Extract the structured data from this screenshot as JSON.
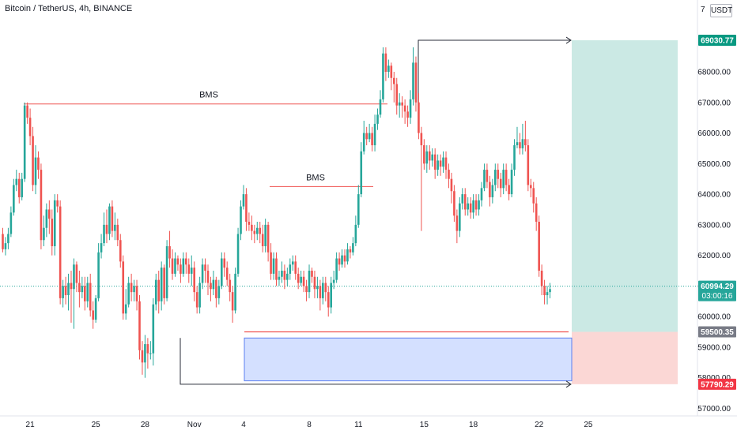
{
  "header": {
    "title": "Bitcoin / TetherUS, 4h, BINANCE",
    "corner_value": "7",
    "currency": "USDT"
  },
  "chart_data": {
    "type": "candlestick",
    "title": "Bitcoin / TetherUS, 4h, BINANCE",
    "ylabel": "",
    "ylim": [
      56700,
      70000
    ],
    "y_ticks": [
      "57000.00",
      "58000.00",
      "59000.00",
      "60000.00",
      "61000.00",
      "62000.00",
      "63000.00",
      "64000.00",
      "65000.00",
      "66000.00",
      "67000.00",
      "68000.00"
    ],
    "x_ticks": [
      "21",
      "25",
      "28",
      "Nov",
      "4",
      "8",
      "11",
      "15",
      "18",
      "22",
      "25"
    ],
    "x_tick_bars": [
      10,
      34,
      52,
      70,
      88,
      112,
      130,
      154,
      172,
      196,
      214
    ],
    "candles": [
      [
        62700,
        62200,
        62900,
        62100
      ],
      [
        62200,
        62400,
        62600,
        62000
      ],
      [
        62400,
        62700,
        62900,
        62200
      ],
      [
        62700,
        63400,
        63600,
        62600
      ],
      [
        63400,
        64300,
        64500,
        63300
      ],
      [
        64300,
        64500,
        64800,
        64100
      ],
      [
        64500,
        63900,
        64700,
        63700
      ],
      [
        63900,
        64500,
        64700,
        63800
      ],
      [
        64500,
        66900,
        67000,
        64400
      ],
      [
        66900,
        66500,
        67000,
        66300
      ],
      [
        66500,
        65900,
        66800,
        65600
      ],
      [
        65900,
        64300,
        66200,
        64100
      ],
      [
        64300,
        65200,
        65600,
        64000
      ],
      [
        65200,
        64800,
        65400,
        64500
      ],
      [
        64800,
        62500,
        65000,
        62200
      ],
      [
        62500,
        62900,
        63300,
        62300
      ],
      [
        62900,
        63500,
        63700,
        62600
      ],
      [
        63500,
        63200,
        63800,
        62700
      ],
      [
        63200,
        62300,
        63500,
        62000
      ],
      [
        62300,
        63800,
        64000,
        62000
      ],
      [
        63800,
        63600,
        64000,
        63400
      ],
      [
        63600,
        60600,
        63800,
        60400
      ],
      [
        60600,
        61000,
        61200,
        60300
      ],
      [
        61000,
        60700,
        61300,
        60400
      ],
      [
        60700,
        61100,
        61400,
        60200
      ],
      [
        61100,
        60900,
        61500,
        59800
      ],
      [
        60900,
        61700,
        61900,
        59600
      ],
      [
        61700,
        61100,
        61800,
        60800
      ],
      [
        61100,
        60800,
        61500,
        60300
      ],
      [
        60800,
        61000,
        61300,
        60600
      ],
      [
        61000,
        60500,
        61300,
        60200
      ],
      [
        60500,
        61100,
        61300,
        60300
      ],
      [
        61100,
        60200,
        61400,
        60000
      ],
      [
        60200,
        59900,
        60500,
        59600
      ],
      [
        59900,
        60600,
        60700,
        59800
      ],
      [
        60600,
        62100,
        62400,
        60500
      ],
      [
        62100,
        62400,
        62700,
        61900
      ],
      [
        62400,
        63000,
        63400,
        62300
      ],
      [
        63000,
        62700,
        63500,
        62400
      ],
      [
        62700,
        63600,
        63700,
        62500
      ],
      [
        63600,
        62800,
        63800,
        62600
      ],
      [
        62800,
        63000,
        63400,
        62500
      ],
      [
        63000,
        62500,
        63200,
        62300
      ],
      [
        62500,
        61800,
        62700,
        61600
      ],
      [
        61800,
        60100,
        62000,
        59900
      ],
      [
        60100,
        60400,
        60900,
        59900
      ],
      [
        60400,
        61100,
        61300,
        60300
      ],
      [
        61100,
        60800,
        61400,
        60500
      ],
      [
        60800,
        61000,
        61200,
        60500
      ],
      [
        61000,
        60500,
        61200,
        60200
      ],
      [
        60500,
        58900,
        60700,
        58600
      ],
      [
        58900,
        58500,
        59200,
        58100
      ],
      [
        58500,
        59100,
        59400,
        58000
      ],
      [
        59100,
        58800,
        59300,
        58300
      ],
      [
        58800,
        58800,
        59200,
        58600
      ],
      [
        58800,
        60400,
        60600,
        58400
      ],
      [
        60400,
        61200,
        61400,
        60200
      ],
      [
        61200,
        60500,
        61500,
        60100
      ],
      [
        60500,
        61600,
        61800,
        60200
      ],
      [
        61600,
        60600,
        61700,
        60400
      ],
      [
        60600,
        62300,
        62500,
        60500
      ],
      [
        62300,
        61900,
        62800,
        61600
      ],
      [
        61900,
        61400,
        62200,
        61200
      ],
      [
        61400,
        61900,
        62100,
        61300
      ],
      [
        61900,
        61700,
        62000,
        61500
      ],
      [
        61700,
        61400,
        61900,
        61100
      ],
      [
        61400,
        61900,
        62100,
        61300
      ],
      [
        61900,
        61700,
        62100,
        61400
      ],
      [
        61700,
        61400,
        61900,
        61100
      ],
      [
        61400,
        61600,
        62000,
        61000
      ],
      [
        61600,
        60800,
        61800,
        60500
      ],
      [
        60800,
        60300,
        61000,
        60100
      ],
      [
        60300,
        61100,
        61300,
        60100
      ],
      [
        61100,
        61700,
        61900,
        60900
      ],
      [
        61700,
        61500,
        61900,
        61100
      ],
      [
        61500,
        61100,
        61700,
        60700
      ],
      [
        61100,
        60900,
        61300,
        60500
      ],
      [
        60900,
        61200,
        61500,
        60700
      ],
      [
        61200,
        60600,
        61300,
        60300
      ],
      [
        60600,
        61000,
        61200,
        60400
      ],
      [
        61000,
        61900,
        62100,
        60900
      ],
      [
        61900,
        61600,
        62100,
        61300
      ],
      [
        61600,
        61200,
        61800,
        61000
      ],
      [
        61200,
        60800,
        61400,
        60500
      ],
      [
        60800,
        60200,
        61000,
        59800
      ],
      [
        60200,
        61400,
        61600,
        60100
      ],
      [
        61400,
        62700,
        62900,
        61300
      ],
      [
        62700,
        63600,
        63800,
        62500
      ],
      [
        63600,
        64000,
        64300,
        63500
      ],
      [
        64000,
        63100,
        64200,
        62800
      ],
      [
        63100,
        63000,
        63400,
        62800
      ],
      [
        63000,
        62800,
        63300,
        62500
      ],
      [
        62800,
        62700,
        63000,
        62400
      ],
      [
        62700,
        62900,
        63100,
        62500
      ],
      [
        62900,
        62700,
        63100,
        62400
      ],
      [
        62700,
        62300,
        63000,
        62100
      ],
      [
        62300,
        63000,
        63200,
        62100
      ],
      [
        63000,
        62100,
        63100,
        61800
      ],
      [
        62100,
        61400,
        62400,
        61200
      ],
      [
        61400,
        61900,
        62100,
        61200
      ],
      [
        61900,
        61200,
        62100,
        61000
      ],
      [
        61200,
        61300,
        61500,
        61000
      ],
      [
        61300,
        61500,
        61800,
        61100
      ],
      [
        61500,
        61200,
        61700,
        60900
      ],
      [
        61200,
        61400,
        61600,
        61000
      ],
      [
        61400,
        61700,
        61900,
        61200
      ],
      [
        61700,
        61800,
        62000,
        61500
      ],
      [
        61800,
        61400,
        62000,
        61200
      ],
      [
        61400,
        61100,
        61600,
        60900
      ],
      [
        61100,
        61300,
        61500,
        61000
      ],
      [
        61300,
        61000,
        61500,
        60800
      ],
      [
        61000,
        60800,
        61200,
        60500
      ],
      [
        60800,
        61500,
        61700,
        60600
      ],
      [
        61500,
        61300,
        61600,
        61100
      ],
      [
        61300,
        60900,
        61500,
        60600
      ],
      [
        60900,
        61000,
        61300,
        60600
      ],
      [
        61000,
        60600,
        61200,
        60200
      ],
      [
        60600,
        61100,
        61300,
        60400
      ],
      [
        61100,
        60800,
        61300,
        60500
      ],
      [
        60800,
        60300,
        61000,
        60000
      ],
      [
        60300,
        61100,
        61300,
        60100
      ],
      [
        61100,
        61200,
        61500,
        60900
      ],
      [
        61200,
        61900,
        62100,
        61100
      ],
      [
        61900,
        61700,
        62100,
        61500
      ],
      [
        61700,
        62000,
        62200,
        61600
      ],
      [
        62000,
        61800,
        62200,
        61600
      ],
      [
        61800,
        62200,
        62400,
        61700
      ],
      [
        62200,
        62100,
        62300,
        61900
      ],
      [
        62100,
        62400,
        62600,
        62000
      ],
      [
        62400,
        63000,
        63300,
        62300
      ],
      [
        63000,
        64000,
        64300,
        62900
      ],
      [
        64000,
        65400,
        65700,
        63900
      ],
      [
        65400,
        66000,
        66400,
        65300
      ],
      [
        66000,
        65800,
        66200,
        65600
      ],
      [
        65800,
        66000,
        66300,
        65700
      ],
      [
        66000,
        65600,
        66200,
        65400
      ],
      [
        65600,
        66300,
        66600,
        65400
      ],
      [
        66300,
        66600,
        66800,
        66100
      ],
      [
        66600,
        67100,
        67400,
        66500
      ],
      [
        67100,
        68600,
        68800,
        67000
      ],
      [
        68600,
        68000,
        68800,
        67700
      ],
      [
        68000,
        68200,
        68400,
        67800
      ],
      [
        68200,
        67800,
        68300,
        67400
      ],
      [
        67800,
        67600,
        68000,
        67000
      ],
      [
        67600,
        66900,
        67800,
        66600
      ],
      [
        66900,
        67000,
        67300,
        66500
      ],
      [
        67000,
        66900,
        67200,
        66500
      ],
      [
        66900,
        66700,
        67100,
        66300
      ],
      [
        66700,
        66500,
        66900,
        66200
      ],
      [
        66500,
        67100,
        67400,
        66300
      ],
      [
        67100,
        68300,
        68800,
        66900
      ],
      [
        68300,
        67000,
        68500,
        66700
      ],
      [
        67000,
        66000,
        67300,
        65800
      ],
      [
        66000,
        65600,
        66200,
        62800
      ],
      [
        65600,
        65000,
        65800,
        64800
      ],
      [
        65000,
        65400,
        65600,
        64700
      ],
      [
        65400,
        65100,
        65600,
        64800
      ],
      [
        65100,
        65300,
        65500,
        64900
      ],
      [
        65300,
        64800,
        65500,
        64500
      ],
      [
        64800,
        65100,
        65300,
        64600
      ],
      [
        65100,
        64900,
        65300,
        64600
      ],
      [
        64900,
        65200,
        65400,
        64700
      ],
      [
        65200,
        64800,
        65400,
        64500
      ],
      [
        64800,
        64500,
        65000,
        64200
      ],
      [
        64500,
        64100,
        64700,
        63700
      ],
      [
        64100,
        63300,
        64300,
        63100
      ],
      [
        63300,
        62800,
        63500,
        62400
      ],
      [
        62800,
        63700,
        63900,
        62600
      ],
      [
        63700,
        64000,
        64200,
        63500
      ],
      [
        64000,
        63500,
        64200,
        63300
      ],
      [
        63500,
        63700,
        63900,
        63300
      ],
      [
        63700,
        63400,
        63900,
        63200
      ],
      [
        63400,
        63800,
        64000,
        63200
      ],
      [
        63800,
        63500,
        64000,
        63300
      ],
      [
        63500,
        63800,
        64000,
        63300
      ],
      [
        63800,
        64200,
        64400,
        63600
      ],
      [
        64200,
        64800,
        65000,
        64100
      ],
      [
        64800,
        64400,
        65000,
        64200
      ],
      [
        64400,
        63900,
        64600,
        63600
      ],
      [
        63900,
        64300,
        64500,
        63700
      ],
      [
        64300,
        64800,
        65000,
        64100
      ],
      [
        64800,
        64500,
        65000,
        64200
      ],
      [
        64500,
        64200,
        64700,
        63900
      ],
      [
        64200,
        64800,
        65000,
        64000
      ],
      [
        64800,
        64300,
        65000,
        64100
      ],
      [
        64300,
        64000,
        64500,
        63800
      ],
      [
        64000,
        64800,
        65000,
        63900
      ],
      [
        64800,
        65600,
        65800,
        64600
      ],
      [
        65600,
        65700,
        66200,
        65500
      ],
      [
        65700,
        65500,
        66000,
        65300
      ],
      [
        65500,
        65800,
        66300,
        65300
      ],
      [
        65800,
        65600,
        66400,
        65400
      ],
      [
        65600,
        64300,
        65800,
        64100
      ],
      [
        64300,
        64200,
        64500,
        63900
      ],
      [
        64200,
        63700,
        64400,
        63400
      ],
      [
        63700,
        63100,
        63900,
        62800
      ],
      [
        63100,
        61500,
        63300,
        61300
      ],
      [
        61500,
        61000,
        61700,
        60700
      ],
      [
        61000,
        60700,
        61200,
        60400
      ],
      [
        60700,
        60800,
        61000,
        60400
      ],
      [
        60800,
        60900,
        61100,
        60600
      ]
    ],
    "annotations": {
      "bms_labels": [
        "BMS",
        "BMS"
      ],
      "bms_levels": [
        66950,
        64250
      ],
      "current_price": 60994.29,
      "target_price": 69030.77,
      "entry_price": 59500.35,
      "stop_price": 57790.29,
      "demand_zone": [
        57900,
        59300
      ]
    },
    "price_labels": {
      "target": "69030.77",
      "current": "60994.29",
      "countdown": "03:00:16",
      "entry": "59500.35",
      "stop": "57790.29"
    },
    "colors": {
      "up": "#26a69a",
      "down": "#ef5350",
      "target_fill": "#cbe9e4",
      "stop_fill": "#fbd7d5",
      "zone_fill": "#d4e0ff",
      "zone_stroke": "#5b7ff0",
      "bms_line": "#ef5350",
      "arrow": "#2a2e39",
      "current_line": "#26a69a",
      "target_badge": "#089981",
      "entry_badge": "#787b86",
      "stop_badge": "#f23645"
    }
  }
}
